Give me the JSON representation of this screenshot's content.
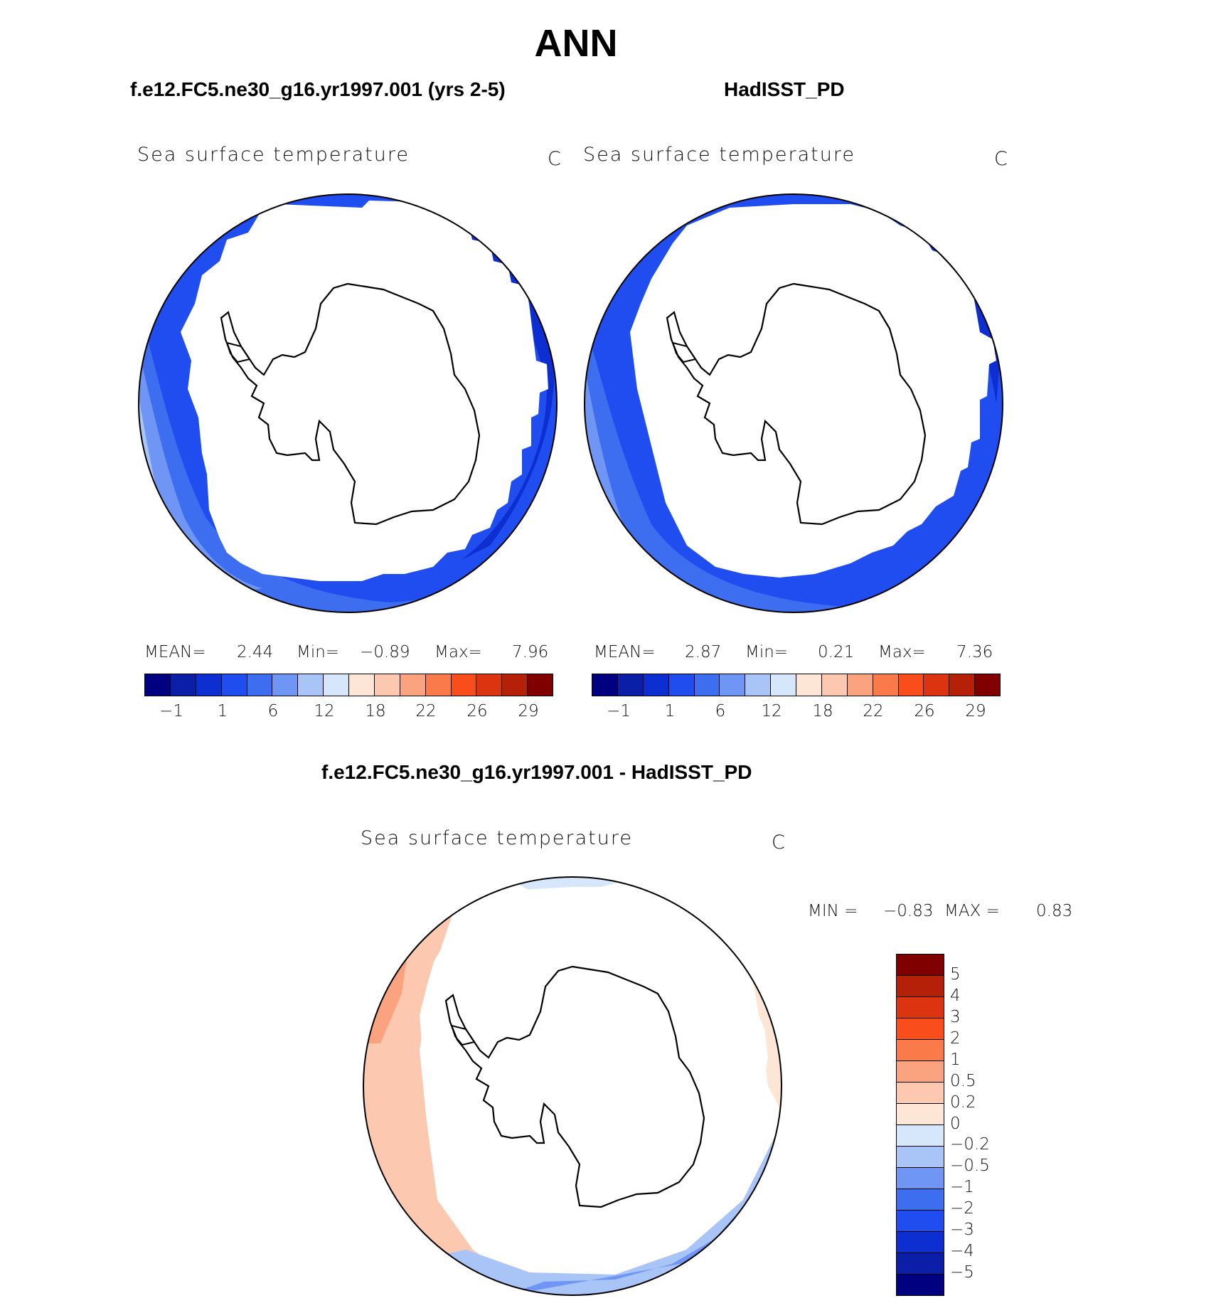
{
  "title": "ANN",
  "panels": [
    {
      "case_title": "f.e12.FC5.ne30_g16.yr1997.001 (yrs 2-5)",
      "variable": "Sea surface temperature",
      "units": "C",
      "stats": {
        "mean_label": "MEAN=",
        "mean": "2.44",
        "min_label": "Min=",
        "min": "−0.89",
        "max_label": "Max=",
        "max": "7.96"
      }
    },
    {
      "case_title": "HadISST_PD",
      "variable": "Sea surface temperature",
      "units": "C",
      "stats": {
        "mean_label": "MEAN=",
        "mean": "2.87",
        "min_label": "Min=",
        "min": "0.21",
        "max_label": "Max=",
        "max": "7.36"
      }
    }
  ],
  "shared_colorbar": {
    "colors": [
      "#000080",
      "#0a1ea8",
      "#0d2ed0",
      "#1f4df0",
      "#3e6ef0",
      "#6f96f5",
      "#a9c4f7",
      "#d6e7fb",
      "#fde6d6",
      "#fcc8b0",
      "#fba27f",
      "#fb7a4a",
      "#fa4d1c",
      "#dc3410",
      "#b42008",
      "#800000"
    ],
    "tick_labels": [
      "−1",
      "1",
      "6",
      "12",
      "18",
      "22",
      "26",
      "29"
    ]
  },
  "difference_panel": {
    "case_title": "f.e12.FC5.ne30_g16.yr1997.001 - HadISST_PD",
    "variable": "Sea surface temperature",
    "units": "C",
    "min_label": "MIN =",
    "min": "−0.83",
    "max_label": "MAX =",
    "max": "0.83",
    "colorbar_colors": [
      "#800000",
      "#b42008",
      "#dc3410",
      "#fa4d1c",
      "#fb7a4a",
      "#fba27f",
      "#fcc8b0",
      "#fde6d6",
      "#d6e7fb",
      "#a9c4f7",
      "#6f96f5",
      "#3e6ef0",
      "#1f4df0",
      "#0d2ed0",
      "#0a1ea8",
      "#000080"
    ],
    "colorbar_labels": [
      "5",
      "4",
      "3",
      "2",
      "1",
      "0.5",
      "0.2",
      "0",
      "−0.2",
      "−0.5",
      "−1",
      "−2",
      "−3",
      "−4",
      "−5"
    ]
  }
}
